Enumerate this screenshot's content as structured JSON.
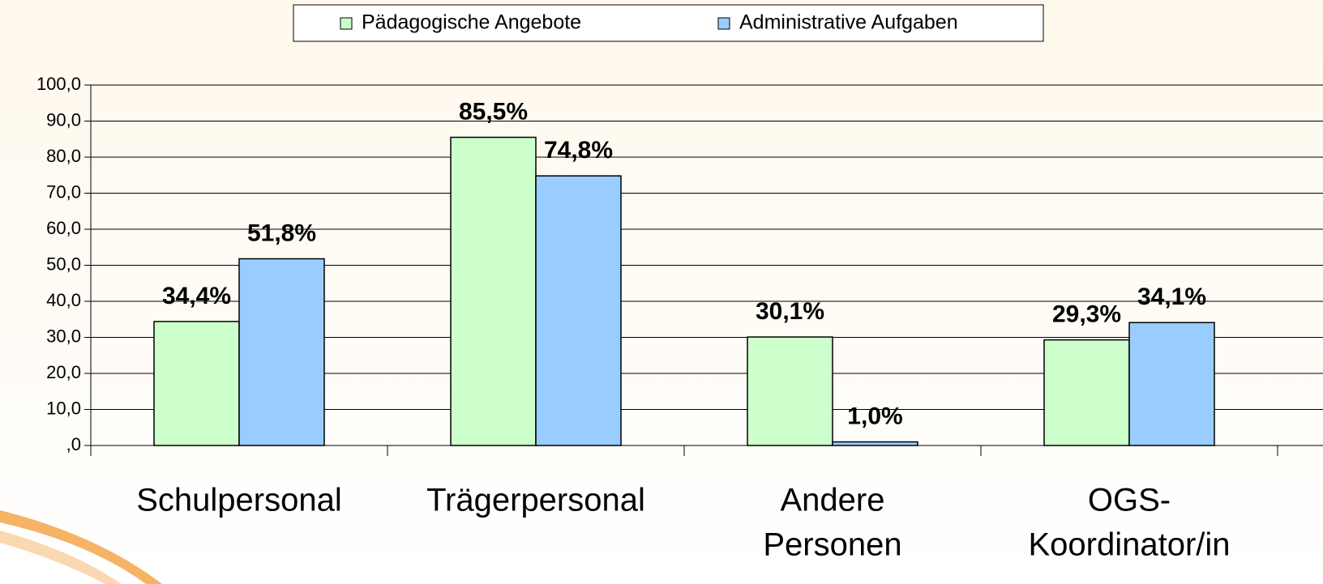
{
  "chart_data": {
    "type": "bar",
    "categories": [
      [
        "Schulpersonal"
      ],
      [
        "Trägerpersonal"
      ],
      [
        "Andere",
        "Personen"
      ],
      [
        "OGS-",
        "Koordinator/in"
      ]
    ],
    "series": [
      {
        "name": "Pädagogische Angebote",
        "color": "#ccffcc",
        "values": [
          34.4,
          85.5,
          30.1,
          29.3
        ],
        "value_labels": [
          "34,4%",
          "85,5%",
          "30,1%",
          "29,3%"
        ]
      },
      {
        "name": "Administrative Aufgaben",
        "color": "#99ccff",
        "values": [
          51.8,
          74.8,
          1.0,
          34.1
        ],
        "value_labels": [
          "51,8%",
          "74,8%",
          "1,0%",
          "34,1%"
        ]
      }
    ],
    "ylim": [
      0,
      100
    ],
    "yticks": [
      {
        "value": 0,
        "label": ",0"
      },
      {
        "value": 10,
        "label": "10,0"
      },
      {
        "value": 20,
        "label": "20,0"
      },
      {
        "value": 30,
        "label": "30,0"
      },
      {
        "value": 40,
        "label": "40,0"
      },
      {
        "value": 50,
        "label": "50,0"
      },
      {
        "value": 60,
        "label": "60,0"
      },
      {
        "value": 70,
        "label": "70,0"
      },
      {
        "value": 80,
        "label": "80,0"
      },
      {
        "value": 90,
        "label": "90,0"
      },
      {
        "value": 100,
        "label": "100,0"
      }
    ],
    "grid": true,
    "legend": "top"
  }
}
